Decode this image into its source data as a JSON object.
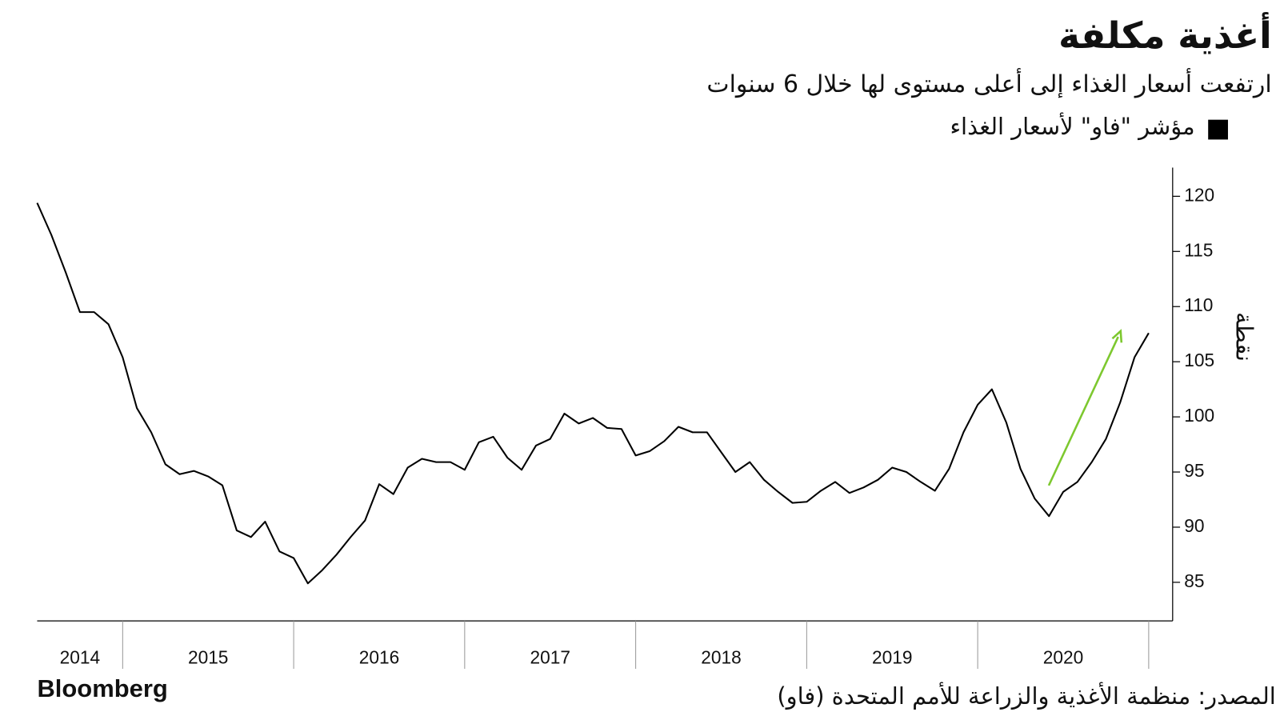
{
  "chart_data": {
    "type": "line",
    "title": "أغذية مكلفة",
    "subtitle": "ارتفعت أسعار الغذاء إلى أعلى مستوى لها خلال 6 سنوات",
    "y_label": "نقطة",
    "source": "المصدر: منظمة الأغذية والزراعة للأمم المتحدة (فاو)",
    "brand": "Bloomberg",
    "x": [
      2014.5,
      2014.583,
      2014.667,
      2014.75,
      2014.833,
      2014.917,
      2015,
      2015.083,
      2015.167,
      2015.25,
      2015.333,
      2015.417,
      2015.5,
      2015.583,
      2015.667,
      2015.75,
      2015.833,
      2015.917,
      2016,
      2016.083,
      2016.167,
      2016.25,
      2016.333,
      2016.417,
      2016.5,
      2016.583,
      2016.667,
      2016.75,
      2016.833,
      2016.917,
      2017,
      2017.083,
      2017.167,
      2017.25,
      2017.333,
      2017.417,
      2017.5,
      2017.583,
      2017.667,
      2017.75,
      2017.833,
      2017.917,
      2018,
      2018.083,
      2018.167,
      2018.25,
      2018.333,
      2018.417,
      2018.5,
      2018.583,
      2018.667,
      2018.75,
      2018.833,
      2018.917,
      2019,
      2019.083,
      2019.167,
      2019.25,
      2019.333,
      2019.417,
      2019.5,
      2019.583,
      2019.667,
      2019.75,
      2019.833,
      2019.917,
      2020,
      2020.083,
      2020.167,
      2020.25,
      2020.333,
      2020.417,
      2020.5,
      2020.583,
      2020.667,
      2020.75,
      2020.833,
      2020.917,
      2021
    ],
    "series": [
      {
        "name": "مؤشر \"فاو\" لأسعار الغذاء",
        "color": "#000000",
        "values": [
          119.4,
          116.5,
          113.1,
          109.5,
          109.5,
          108.4,
          105.4,
          100.8,
          98.6,
          95.7,
          94.8,
          95.1,
          94.6,
          93.8,
          89.7,
          89.1,
          90.5,
          87.8,
          87.2,
          84.9,
          86.1,
          87.5,
          89.1,
          90.6,
          93.9,
          93.0,
          95.4,
          96.2,
          95.9,
          95.9,
          95.2,
          97.7,
          98.2,
          96.3,
          95.2,
          97.4,
          98.0,
          100.3,
          99.4,
          99.9,
          99.0,
          98.9,
          96.5,
          96.9,
          97.8,
          99.1,
          98.6,
          98.6,
          96.8,
          95.0,
          95.9,
          94.3,
          93.2,
          92.2,
          92.3,
          93.3,
          94.1,
          93.1,
          93.6,
          94.3,
          95.4,
          95.0,
          94.1,
          93.3,
          95.3,
          98.6,
          101.1,
          102.5,
          99.5,
          95.3,
          92.6,
          91.0,
          93.2,
          94.1,
          95.9,
          98.0,
          101.3,
          105.4,
          107.6
        ]
      }
    ],
    "xlim": [
      2014.5,
      2021.14
    ],
    "xticks": [
      {
        "value": 2014.75,
        "label": "2014"
      },
      {
        "value": 2015.5,
        "label": "2015"
      },
      {
        "value": 2016.5,
        "label": "2016"
      },
      {
        "value": 2017.5,
        "label": "2017"
      },
      {
        "value": 2018.5,
        "label": "2018"
      },
      {
        "value": 2019.5,
        "label": "2019"
      },
      {
        "value": 2020.5,
        "label": "2020"
      }
    ],
    "xdividers": [
      2015,
      2016,
      2017,
      2018,
      2019,
      2020,
      2021
    ],
    "ylim": [
      81.5,
      122.6
    ],
    "yticks": [
      85,
      90,
      95,
      100,
      105,
      110,
      115,
      120
    ]
  }
}
